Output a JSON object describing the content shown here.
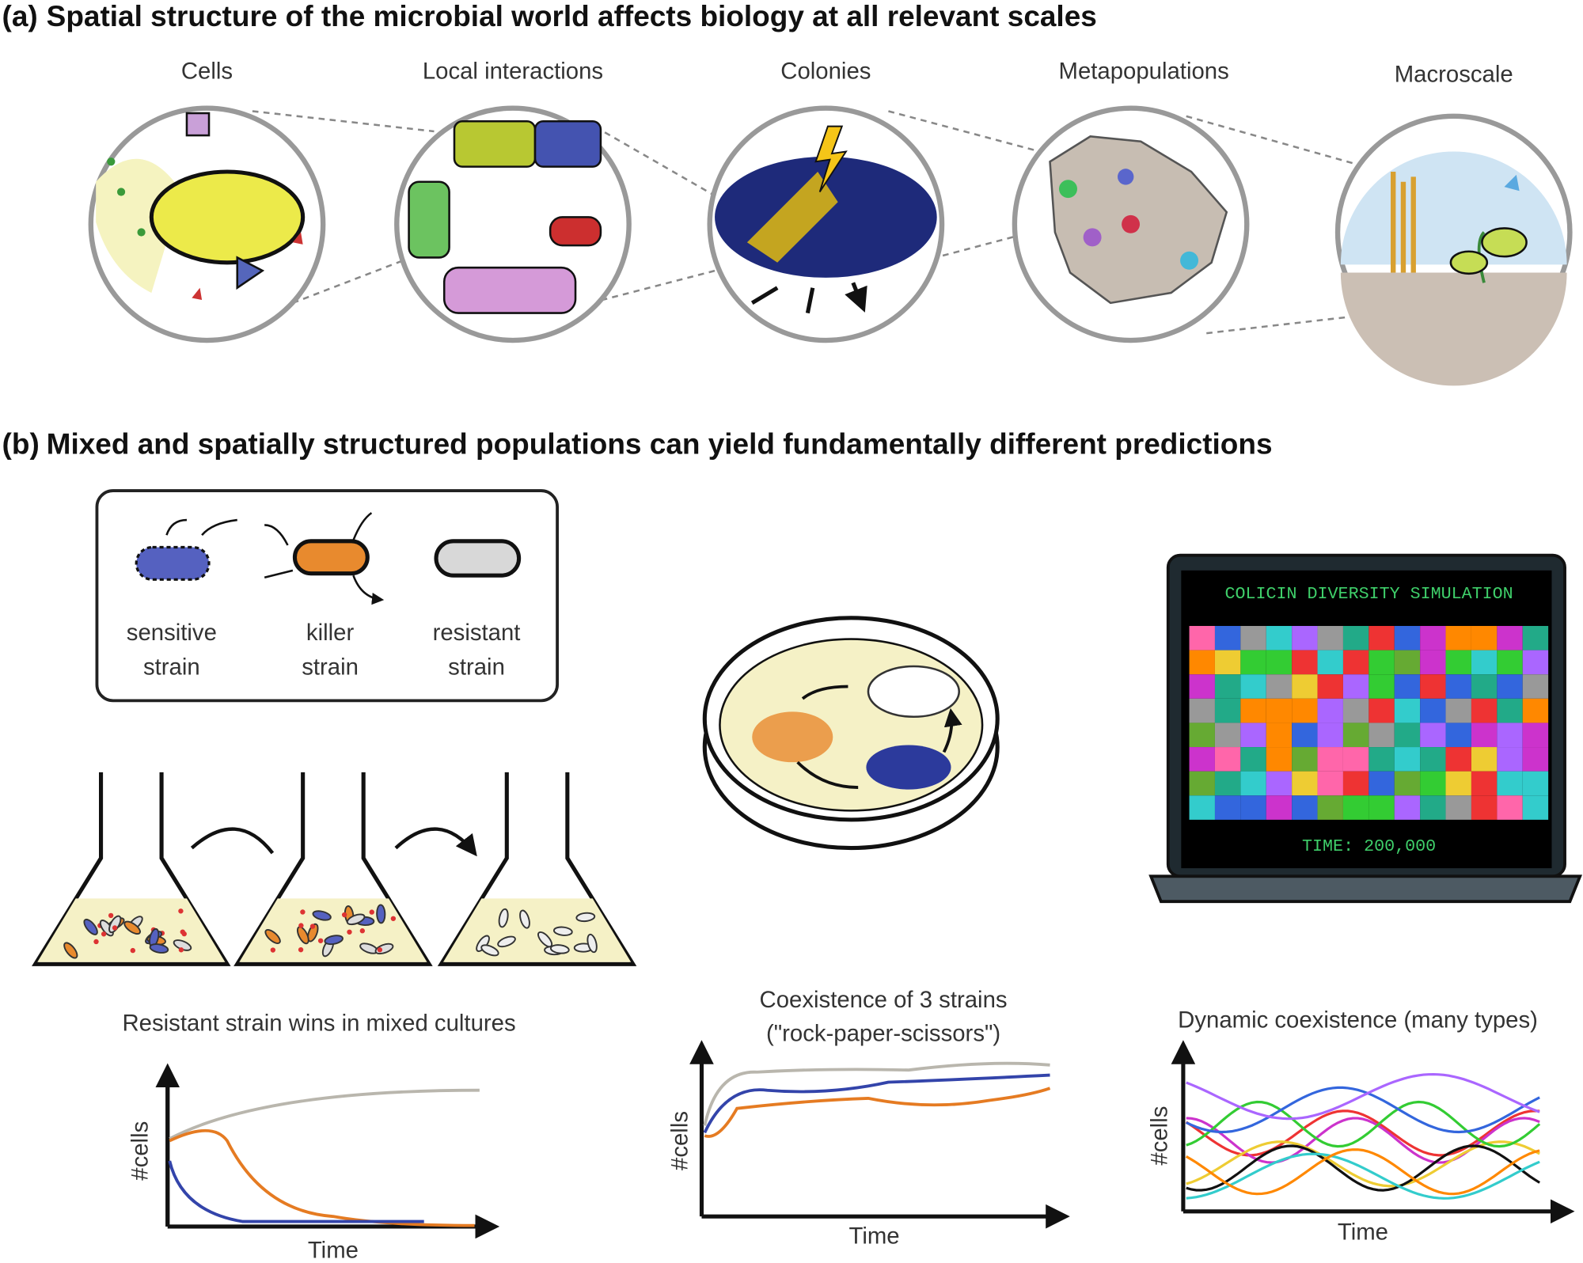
{
  "panel_a": {
    "label": "(a)",
    "title": "Spatial structure of the microbial world affects biology at all relevant scales",
    "scales": [
      "Cells",
      "Local interactions",
      "Colonies",
      "Metapopulations",
      "Macroscale"
    ]
  },
  "panel_b": {
    "label": "(b)",
    "title": "Mixed and spatially structured populations can yield fundamentally different predictions",
    "legend": [
      {
        "line1": "sensitive",
        "line2": "strain"
      },
      {
        "line1": "killer",
        "line2": "strain"
      },
      {
        "line1": "resistant",
        "line2": "strain"
      }
    ],
    "screen": {
      "title": "COLICIN DIVERSITY SIMULATION",
      "time": "TIME: 200,000"
    },
    "plots": [
      {
        "title_lines": [
          "Resistant strain wins in mixed cultures"
        ],
        "ylabel": "#cells",
        "xlabel": "Time"
      },
      {
        "title_lines": [
          "Coexistence of 3 strains",
          "(\"rock-paper-scissors\")"
        ],
        "ylabel": "#cells",
        "xlabel": "Time"
      },
      {
        "title_lines": [
          "Dynamic coexistence (many types)"
        ],
        "ylabel": "#cells",
        "xlabel": "Time"
      }
    ]
  }
}
